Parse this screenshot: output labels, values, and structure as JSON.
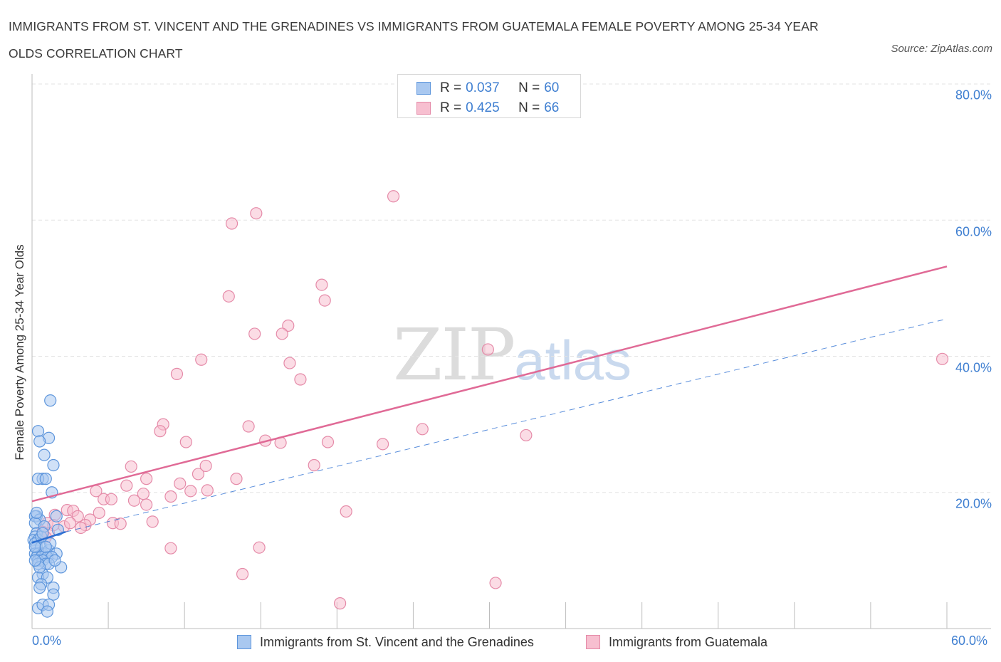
{
  "title": "IMMIGRANTS FROM ST. VINCENT AND THE GRENADINES VS IMMIGRANTS FROM GUATEMALA FEMALE POVERTY AMONG 25-34 YEAR OLDS CORRELATION CHART",
  "source": "Source: ZipAtlas.com",
  "watermark": {
    "zip": "ZIP",
    "atlas": "atlas"
  },
  "legend": {
    "r_label": "R =",
    "n_label": "N =",
    "series1": {
      "r": "0.037",
      "n": "60"
    },
    "series2": {
      "r": "0.425",
      "n": "66"
    }
  },
  "colors": {
    "blue_fill": "#a9c8f0",
    "blue_stroke": "#5e96dc",
    "blue_line": "#2d6fd2",
    "pink_fill": "#f7bfd0",
    "pink_stroke": "#e58aa8",
    "pink_line": "#e06a96",
    "tick_label": "#3f7fd1",
    "grid": "#e3e3e3"
  },
  "chart_data": {
    "type": "scatter",
    "title": "IMMIGRANTS FROM ST. VINCENT AND THE GRENADINES VS IMMIGRANTS FROM GUATEMALA FEMALE POVERTY AMONG 25-34 YEAR OLDS CORRELATION CHART",
    "xlabel": "",
    "ylabel": "Female Poverty Among 25-34 Year Olds",
    "xlim": [
      0,
      60
    ],
    "ylim": [
      0,
      80
    ],
    "x_tick_labels": [
      "0.0%",
      "60.0%"
    ],
    "y_ticks": [
      20,
      40,
      60,
      80
    ],
    "y_tick_labels": [
      "20.0%",
      "40.0%",
      "60.0%",
      "80.0%"
    ],
    "grid": true,
    "series": [
      {
        "name": "Immigrants from St. Vincent and the Grenadines",
        "color": "#a9c8f0",
        "trend": {
          "x": [
            0,
            2.2
          ],
          "y": [
            12.6,
            14.2
          ],
          "style": "solid",
          "dash_extension": {
            "x": [
              2.2,
              60
            ],
            "y": [
              14.2,
              45.5
            ]
          }
        },
        "points": [
          [
            1.2,
            33.5
          ],
          [
            0.4,
            29
          ],
          [
            1.1,
            28
          ],
          [
            0.5,
            27.5
          ],
          [
            0.8,
            25.5
          ],
          [
            1.4,
            24
          ],
          [
            0.7,
            22
          ],
          [
            0.4,
            22
          ],
          [
            0.9,
            22
          ],
          [
            1.3,
            20
          ],
          [
            0.3,
            16.5
          ],
          [
            0.2,
            16.5
          ],
          [
            0.5,
            16
          ],
          [
            0.2,
            15.5
          ],
          [
            1.6,
            16.5
          ],
          [
            1.7,
            14.5
          ],
          [
            0.3,
            14
          ],
          [
            0.2,
            13.5
          ],
          [
            0.1,
            13
          ],
          [
            0.4,
            13
          ],
          [
            0.2,
            12.5
          ],
          [
            0.3,
            12
          ],
          [
            0.6,
            12
          ],
          [
            0.2,
            11
          ],
          [
            0.4,
            11
          ],
          [
            0.7,
            11
          ],
          [
            0.9,
            11
          ],
          [
            1.1,
            11.5
          ],
          [
            1.6,
            11
          ],
          [
            0.3,
            10.5
          ],
          [
            0.6,
            10.5
          ],
          [
            1.0,
            10.5
          ],
          [
            1.3,
            10.5
          ],
          [
            0.4,
            10
          ],
          [
            0.7,
            10
          ],
          [
            0.9,
            9.5
          ],
          [
            0.4,
            9.5
          ],
          [
            1.1,
            9.5
          ],
          [
            1.9,
            9
          ],
          [
            0.7,
            8
          ],
          [
            0.4,
            7.5
          ],
          [
            1.0,
            7.5
          ],
          [
            0.6,
            6.5
          ],
          [
            0.5,
            6
          ],
          [
            1.4,
            6
          ],
          [
            1.4,
            5
          ],
          [
            0.4,
            3
          ],
          [
            0.7,
            3.5
          ],
          [
            1.1,
            3.5
          ],
          [
            1.0,
            2.5
          ],
          [
            0.2,
            12
          ],
          [
            0.6,
            13.5
          ],
          [
            1.2,
            12.5
          ],
          [
            0.8,
            15
          ],
          [
            0.3,
            17
          ],
          [
            1.5,
            10
          ],
          [
            0.5,
            9
          ],
          [
            0.9,
            12
          ],
          [
            0.2,
            10
          ],
          [
            0.7,
            14
          ]
        ]
      },
      {
        "name": "Immigrants from Guatemala",
        "color": "#f7bfd0",
        "trend": {
          "x": [
            0,
            60
          ],
          "y": [
            18.7,
            53.2
          ],
          "style": "solid"
        },
        "points": [
          [
            23.7,
            63.5
          ],
          [
            14.7,
            61
          ],
          [
            13.1,
            59.5
          ],
          [
            19.0,
            50.5
          ],
          [
            19.2,
            48.2
          ],
          [
            12.9,
            48.8
          ],
          [
            16.8,
            44.5
          ],
          [
            16.4,
            43.3
          ],
          [
            14.6,
            43.3
          ],
          [
            29.9,
            41
          ],
          [
            11.1,
            39.5
          ],
          [
            16.9,
            39
          ],
          [
            9.5,
            37.4
          ],
          [
            17.6,
            36.6
          ],
          [
            59.7,
            39.6
          ],
          [
            8.6,
            30
          ],
          [
            8.4,
            29
          ],
          [
            14.2,
            29.7
          ],
          [
            25.6,
            29.3
          ],
          [
            32.4,
            28.4
          ],
          [
            10.1,
            27.4
          ],
          [
            15.3,
            27.6
          ],
          [
            16.3,
            27.3
          ],
          [
            19.4,
            27.4
          ],
          [
            23.0,
            27.1
          ],
          [
            6.5,
            23.8
          ],
          [
            11.4,
            23.9
          ],
          [
            18.5,
            24.0
          ],
          [
            10.9,
            22.7
          ],
          [
            6.2,
            21
          ],
          [
            7.5,
            22
          ],
          [
            13.4,
            22
          ],
          [
            9.7,
            21.3
          ],
          [
            4.2,
            20.2
          ],
          [
            7.3,
            19.8
          ],
          [
            10.4,
            20.2
          ],
          [
            11.5,
            20.3
          ],
          [
            9.1,
            19.4
          ],
          [
            4.7,
            19
          ],
          [
            5.2,
            19
          ],
          [
            6.7,
            18.8
          ],
          [
            7.5,
            18.2
          ],
          [
            2.3,
            17.4
          ],
          [
            2.7,
            17.3
          ],
          [
            3.0,
            16.5
          ],
          [
            4.4,
            17
          ],
          [
            1.5,
            16.7
          ],
          [
            3.8,
            16
          ],
          [
            2.1,
            15
          ],
          [
            2.5,
            15.5
          ],
          [
            3.5,
            15.2
          ],
          [
            5.3,
            15.5
          ],
          [
            5.8,
            15.4
          ],
          [
            7.9,
            15.7
          ],
          [
            3.2,
            14.8
          ],
          [
            1.0,
            15.5
          ],
          [
            1.4,
            15.2
          ],
          [
            1.1,
            14
          ],
          [
            0.9,
            13.4
          ],
          [
            20.6,
            17.2
          ],
          [
            9.1,
            11.8
          ],
          [
            14.9,
            11.9
          ],
          [
            13.8,
            8
          ],
          [
            30.4,
            6.7
          ],
          [
            20.2,
            3.7
          ],
          [
            0.7,
            14.2
          ]
        ]
      }
    ]
  },
  "bottom_legend": {
    "series1": "Immigrants from St. Vincent and the Grenadines",
    "series2": "Immigrants from Guatemala"
  }
}
